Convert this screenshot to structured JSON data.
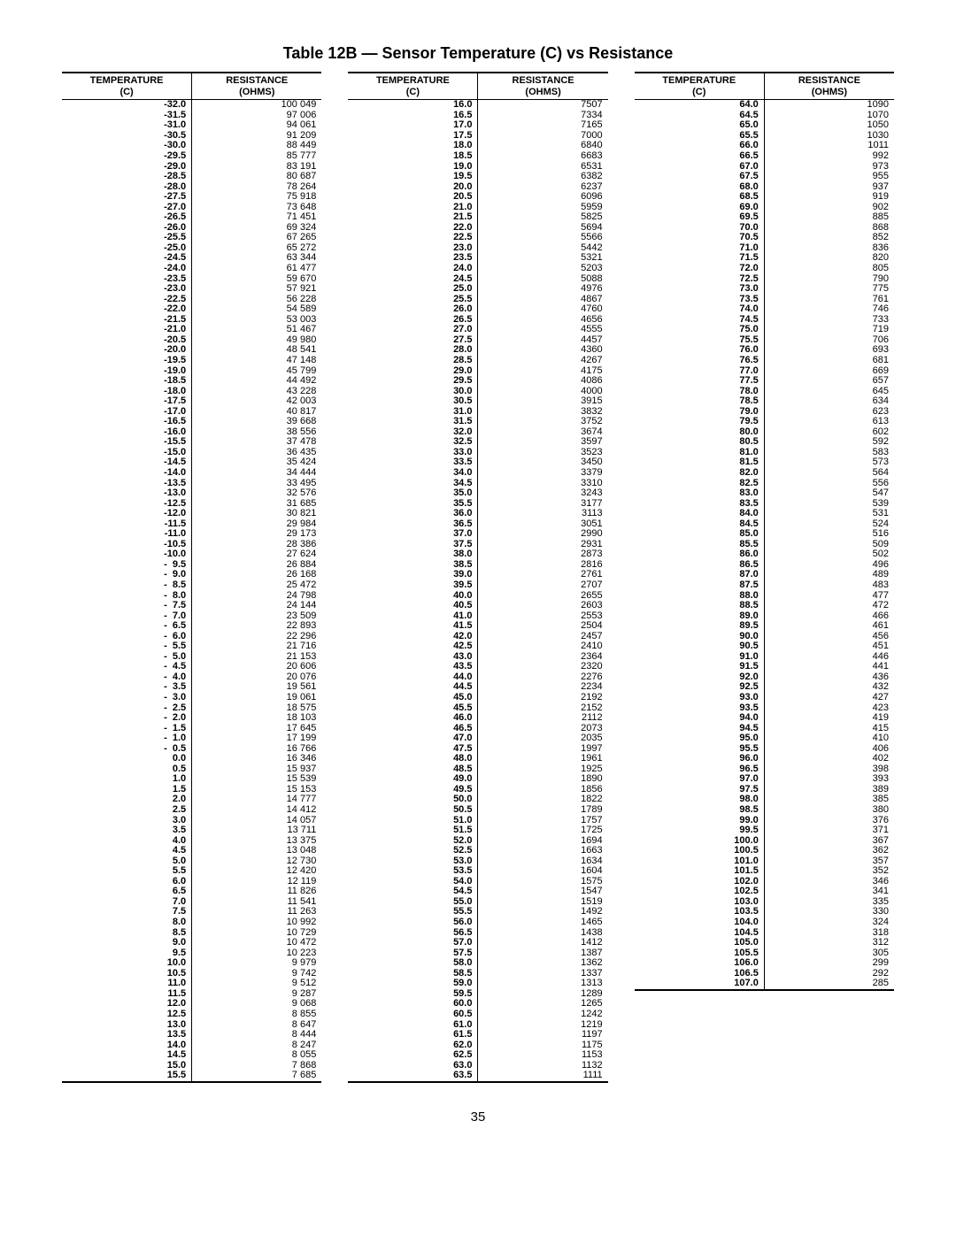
{
  "title": "Table 12B — Sensor Temperature (C) vs Resistance",
  "page_number": "35",
  "header": {
    "temp_line1": "TEMPERATURE",
    "temp_line2": "(C)",
    "res_line1": "RESISTANCE",
    "res_line2": "(OHMS)"
  },
  "col1": {
    "temps": [
      "-32.0",
      "-31.5",
      "-31.0",
      "-30.5",
      "-30.0",
      "-29.5",
      "-29.0",
      "-28.5",
      "-28.0",
      "-27.5",
      "-27.0",
      "-26.5",
      "-26.0",
      "-25.5",
      "-25.0",
      "-24.5",
      "-24.0",
      "-23.5",
      "-23.0",
      "-22.5",
      "-22.0",
      "-21.5",
      "-21.0",
      "-20.5",
      "-20.0",
      "-19.5",
      "-19.0",
      "-18.5",
      "-18.0",
      "-17.5",
      "-17.0",
      "-16.5",
      "-16.0",
      "-15.5",
      "-15.0",
      "-14.5",
      "-14.0",
      "-13.5",
      "-13.0",
      "-12.5",
      "-12.0",
      "-11.5",
      "-11.0",
      "-10.5",
      "-10.0",
      "-  9.5",
      "-  9.0",
      "-  8.5",
      "-  8.0",
      "-  7.5",
      "-  7.0",
      "-  6.5",
      "-  6.0",
      "-  5.5",
      "-  5.0",
      "-  4.5",
      "-  4.0",
      "-  3.5",
      "-  3.0",
      "-  2.5",
      "-  2.0",
      "-  1.5",
      "-  1.0",
      "-  0.5",
      "0.0",
      "0.5",
      "1.0",
      "1.5",
      "2.0",
      "2.5",
      "3.0",
      "3.5",
      "4.0",
      "4.5",
      "5.0",
      "5.5",
      "6.0",
      "6.5",
      "7.0",
      "7.5",
      "8.0",
      "8.5",
      "9.0",
      "9.5",
      "10.0",
      "10.5",
      "11.0",
      "11.5",
      "12.0",
      "12.5",
      "13.0",
      "13.5",
      "14.0",
      "14.5",
      "15.0",
      "15.5"
    ],
    "res": [
      "100 049",
      "97 006",
      "94 061",
      "91 209",
      "88 449",
      "85 777",
      "83 191",
      "80 687",
      "78 264",
      "75 918",
      "73 648",
      "71 451",
      "69 324",
      "67 265",
      "65 272",
      "63 344",
      "61 477",
      "59 670",
      "57 921",
      "56 228",
      "54 589",
      "53 003",
      "51 467",
      "49 980",
      "48 541",
      "47 148",
      "45 799",
      "44 492",
      "43 228",
      "42 003",
      "40 817",
      "39 668",
      "38 556",
      "37 478",
      "36 435",
      "35 424",
      "34 444",
      "33 495",
      "32 576",
      "31 685",
      "30 821",
      "29 984",
      "29 173",
      "28 386",
      "27 624",
      "26 884",
      "26 168",
      "25 472",
      "24 798",
      "24 144",
      "23 509",
      "22 893",
      "22 296",
      "21 716",
      "21 153",
      "20 606",
      "20 076",
      "19 561",
      "19 061",
      "18 575",
      "18 103",
      "17 645",
      "17 199",
      "16 766",
      "16 346",
      "15 937",
      "15 539",
      "15 153",
      "14 777",
      "14 412",
      "14 057",
      "13 711",
      "13 375",
      "13 048",
      "12 730",
      "12 420",
      "12 119",
      "11 826",
      "11 541",
      "11 263",
      "10 992",
      "10 729",
      "10 472",
      "10 223",
      "9 979",
      "9 742",
      "9 512",
      "9 287",
      "9 068",
      "8 855",
      "8 647",
      "8 444",
      "8 247",
      "8 055",
      "7 868",
      "7 685"
    ]
  },
  "col2": {
    "temps": [
      "16.0",
      "16.5",
      "17.0",
      "17.5",
      "18.0",
      "18.5",
      "19.0",
      "19.5",
      "20.0",
      "20.5",
      "21.0",
      "21.5",
      "22.0",
      "22.5",
      "23.0",
      "23.5",
      "24.0",
      "24.5",
      "25.0",
      "25.5",
      "26.0",
      "26.5",
      "27.0",
      "27.5",
      "28.0",
      "28.5",
      "29.0",
      "29.5",
      "30.0",
      "30.5",
      "31.0",
      "31.5",
      "32.0",
      "32.5",
      "33.0",
      "33.5",
      "34.0",
      "34.5",
      "35.0",
      "35.5",
      "36.0",
      "36.5",
      "37.0",
      "37.5",
      "38.0",
      "38.5",
      "39.0",
      "39.5",
      "40.0",
      "40.5",
      "41.0",
      "41.5",
      "42.0",
      "42.5",
      "43.0",
      "43.5",
      "44.0",
      "44.5",
      "45.0",
      "45.5",
      "46.0",
      "46.5",
      "47.0",
      "47.5",
      "48.0",
      "48.5",
      "49.0",
      "49.5",
      "50.0",
      "50.5",
      "51.0",
      "51.5",
      "52.0",
      "52.5",
      "53.0",
      "53.5",
      "54.0",
      "54.5",
      "55.0",
      "55.5",
      "56.0",
      "56.5",
      "57.0",
      "57.5",
      "58.0",
      "58.5",
      "59.0",
      "59.5",
      "60.0",
      "60.5",
      "61.0",
      "61.5",
      "62.0",
      "62.5",
      "63.0",
      "63.5"
    ],
    "res": [
      "7507",
      "7334",
      "7165",
      "7000",
      "6840",
      "6683",
      "6531",
      "6382",
      "6237",
      "6096",
      "5959",
      "5825",
      "5694",
      "5566",
      "5442",
      "5321",
      "5203",
      "5088",
      "4976",
      "4867",
      "4760",
      "4656",
      "4555",
      "4457",
      "4360",
      "4267",
      "4175",
      "4086",
      "4000",
      "3915",
      "3832",
      "3752",
      "3674",
      "3597",
      "3523",
      "3450",
      "3379",
      "3310",
      "3243",
      "3177",
      "3113",
      "3051",
      "2990",
      "2931",
      "2873",
      "2816",
      "2761",
      "2707",
      "2655",
      "2603",
      "2553",
      "2504",
      "2457",
      "2410",
      "2364",
      "2320",
      "2276",
      "2234",
      "2192",
      "2152",
      "2112",
      "2073",
      "2035",
      "1997",
      "1961",
      "1925",
      "1890",
      "1856",
      "1822",
      "1789",
      "1757",
      "1725",
      "1694",
      "1663",
      "1634",
      "1604",
      "1575",
      "1547",
      "1519",
      "1492",
      "1465",
      "1438",
      "1412",
      "1387",
      "1362",
      "1337",
      "1313",
      "1289",
      "1265",
      "1242",
      "1219",
      "1197",
      "1175",
      "1153",
      "1132",
      "1111"
    ]
  },
  "col3": {
    "temps": [
      "64.0",
      "64.5",
      "65.0",
      "65.5",
      "66.0",
      "66.5",
      "67.0",
      "67.5",
      "68.0",
      "68.5",
      "69.0",
      "69.5",
      "70.0",
      "70.5",
      "71.0",
      "71.5",
      "72.0",
      "72.5",
      "73.0",
      "73.5",
      "74.0",
      "74.5",
      "75.0",
      "75.5",
      "76.0",
      "76.5",
      "77.0",
      "77.5",
      "78.0",
      "78.5",
      "79.0",
      "79.5",
      "80.0",
      "80.5",
      "81.0",
      "81.5",
      "82.0",
      "82.5",
      "83.0",
      "83.5",
      "84.0",
      "84.5",
      "85.0",
      "85.5",
      "86.0",
      "86.5",
      "87.0",
      "87.5",
      "88.0",
      "88.5",
      "89.0",
      "89.5",
      "90.0",
      "90.5",
      "91.0",
      "91.5",
      "92.0",
      "92.5",
      "93.0",
      "93.5",
      "94.0",
      "94.5",
      "95.0",
      "95.5",
      "96.0",
      "96.5",
      "97.0",
      "97.5",
      "98.0",
      "98.5",
      "99.0",
      "99.5",
      "100.0",
      "100.5",
      "101.0",
      "101.5",
      "102.0",
      "102.5",
      "103.0",
      "103.5",
      "104.0",
      "104.5",
      "105.0",
      "105.5",
      "106.0",
      "106.5",
      "107.0"
    ],
    "res": [
      "1090",
      "1070",
      "1050",
      "1030",
      "1011",
      "992",
      "973",
      "955",
      "937",
      "919",
      "902",
      "885",
      "868",
      "852",
      "836",
      "820",
      "805",
      "790",
      "775",
      "761",
      "746",
      "733",
      "719",
      "706",
      "693",
      "681",
      "669",
      "657",
      "645",
      "634",
      "623",
      "613",
      "602",
      "592",
      "583",
      "573",
      "564",
      "556",
      "547",
      "539",
      "531",
      "524",
      "516",
      "509",
      "502",
      "496",
      "489",
      "483",
      "477",
      "472",
      "466",
      "461",
      "456",
      "451",
      "446",
      "441",
      "436",
      "432",
      "427",
      "423",
      "419",
      "415",
      "410",
      "406",
      "402",
      "398",
      "393",
      "389",
      "385",
      "380",
      "376",
      "371",
      "367",
      "362",
      "357",
      "352",
      "346",
      "341",
      "335",
      "330",
      "324",
      "318",
      "312",
      "305",
      "299",
      "292",
      "285"
    ]
  }
}
